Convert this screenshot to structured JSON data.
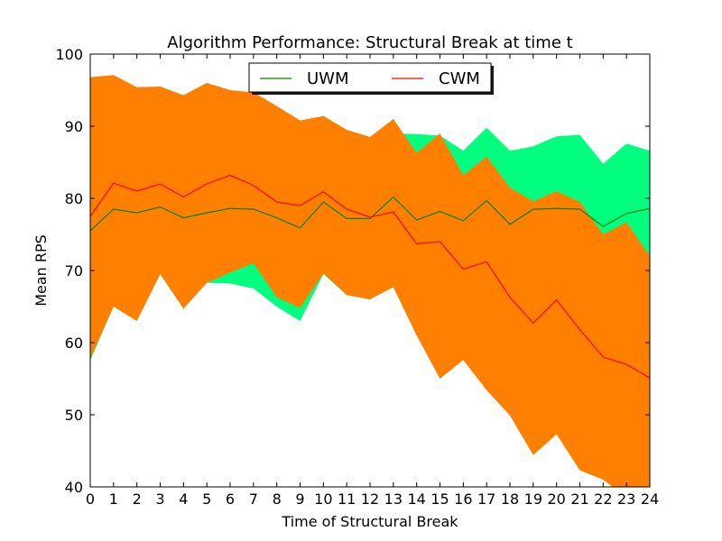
{
  "chart_data": {
    "type": "area",
    "title": "Algorithm Performance: Structural Break at time t",
    "xlabel": "Time of Structural Break",
    "ylabel": "Mean RPS",
    "xlim": [
      0,
      24
    ],
    "ylim": [
      40,
      100
    ],
    "xticks": [
      0,
      1,
      2,
      3,
      4,
      5,
      6,
      7,
      8,
      9,
      10,
      11,
      12,
      13,
      14,
      15,
      16,
      17,
      18,
      19,
      20,
      21,
      22,
      23,
      24
    ],
    "yticks": [
      40,
      50,
      60,
      70,
      80,
      90,
      100
    ],
    "grid": false,
    "legend": "top-center",
    "x": [
      0,
      1,
      2,
      3,
      4,
      5,
      6,
      7,
      8,
      9,
      10,
      11,
      12,
      13,
      14,
      15,
      16,
      17,
      18,
      19,
      20,
      21,
      22,
      23,
      24
    ],
    "series": [
      {
        "name": "UWM",
        "color": "#008000",
        "band_color": "#00ff7f",
        "values": [
          75.5,
          78.5,
          78.0,
          78.8,
          77.3,
          78.0,
          78.6,
          78.5,
          77.3,
          75.9,
          79.5,
          77.2,
          77.2,
          80.2,
          77.0,
          78.2,
          76.9,
          79.7,
          76.4,
          78.5,
          78.6,
          78.5,
          76.1,
          77.9,
          78.6
        ],
        "upper": [
          96.5,
          97.0,
          95.3,
          95.5,
          94.3,
          96.0,
          95.0,
          94.5,
          92.7,
          90.7,
          91.4,
          89.5,
          88.5,
          89.0,
          88.9,
          88.7,
          86.6,
          89.8,
          86.6,
          87.2,
          88.6,
          88.8,
          84.8,
          87.6,
          86.6
        ],
        "lower": [
          57.5,
          65.0,
          63.0,
          69.5,
          64.7,
          68.3,
          68.2,
          67.5,
          65.0,
          63.0,
          69.5,
          66.6,
          66.0,
          67.7,
          61.0,
          58.7,
          59.0,
          59.0,
          59.0,
          60.0,
          62.0,
          63.0,
          64.0,
          65.0,
          66.0
        ]
      },
      {
        "name": "CWM",
        "color": "#ff0000",
        "band_color": "#ff7f00",
        "values": [
          77.5,
          82.1,
          81.0,
          82.0,
          80.2,
          82.0,
          83.2,
          81.8,
          79.5,
          79.0,
          80.9,
          78.5,
          77.4,
          78.1,
          73.7,
          74.0,
          70.2,
          71.2,
          66.3,
          62.7,
          65.9,
          61.8,
          58.0,
          57.0,
          55.1
        ],
        "upper": [
          96.8,
          97.1,
          95.4,
          95.5,
          94.3,
          96.0,
          95.0,
          94.7,
          92.8,
          90.8,
          91.4,
          89.5,
          88.5,
          91.0,
          86.3,
          89.0,
          83.2,
          85.8,
          81.5,
          79.6,
          81.0,
          79.5,
          75.0,
          76.7,
          72.0
        ],
        "lower": [
          57.8,
          65.0,
          63.0,
          69.5,
          64.7,
          68.3,
          69.7,
          71.0,
          66.3,
          64.8,
          69.6,
          66.6,
          66.0,
          67.7,
          61.0,
          55.0,
          57.6,
          53.4,
          49.9,
          44.4,
          47.3,
          42.3,
          41.0,
          38.5,
          38.3
        ]
      }
    ]
  }
}
